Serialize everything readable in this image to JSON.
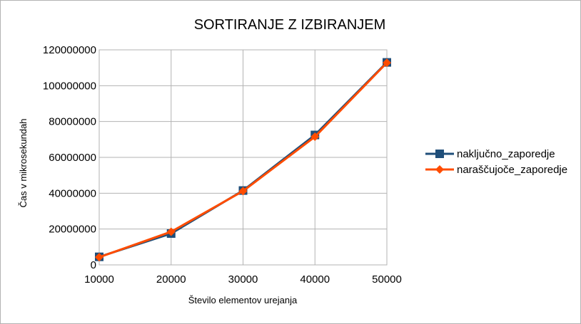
{
  "chart_data": {
    "type": "line",
    "title": "SORTIRANJE Z IZBIRANJEM",
    "xlabel": "Število elementov urejanja",
    "ylabel": "Čas v mikrosekundah",
    "categories": [
      "10000",
      "20000",
      "30000",
      "40000",
      "50000"
    ],
    "yticks": [
      "0",
      "20000000",
      "40000000",
      "60000000",
      "80000000",
      "100000000",
      "120000000"
    ],
    "ylim": [
      0,
      120000000
    ],
    "grid": true,
    "legend_position": "right",
    "series": [
      {
        "name": "naključno_zaporedje",
        "values": [
          4500000,
          17500000,
          41500000,
          72500000,
          113000000
        ],
        "color": "#1f4e79",
        "marker": "square"
      },
      {
        "name": "naraščujoče_zaporedje",
        "values": [
          4300000,
          18500000,
          41200000,
          71500000,
          112800000
        ],
        "color": "#ff4c00",
        "marker": "diamond"
      }
    ]
  }
}
